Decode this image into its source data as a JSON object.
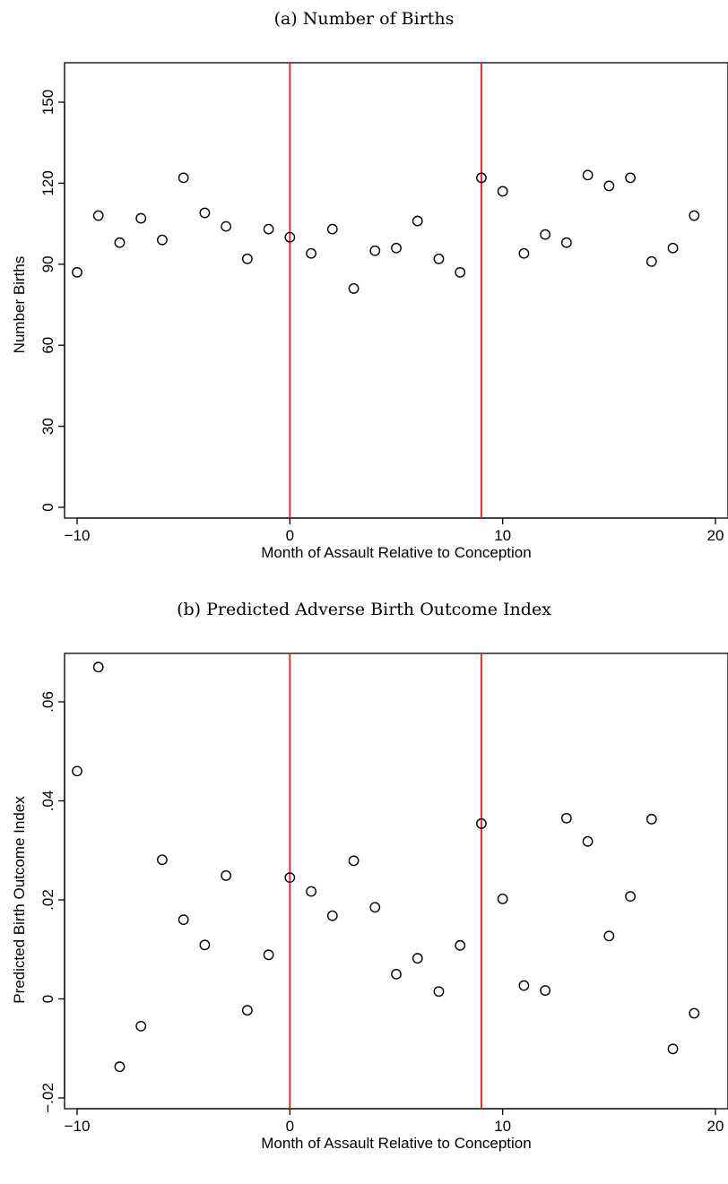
{
  "chart_data": [
    {
      "type": "scatter",
      "title": "(a) Number of Births",
      "xlabel": "Month of Assault Relative to Conception",
      "ylabel": "Number Births",
      "xlim": [
        -10,
        20
      ],
      "ylim": [
        0,
        150
      ],
      "xticks": [
        -10,
        0,
        10,
        20
      ],
      "yticks": [
        0,
        30,
        60,
        90,
        120,
        150
      ],
      "xtick_labels": [
        "−10",
        "0",
        "10",
        "20"
      ],
      "ytick_labels": [
        "0",
        "30",
        "60",
        "90",
        "120",
        "150"
      ],
      "vlines": [
        0,
        9
      ],
      "vline_color": "#e41a1c",
      "marker": "hollow-circle",
      "grid": false,
      "x": [
        -10,
        -9,
        -8,
        -7,
        -6,
        -5,
        -4,
        -3,
        -2,
        -1,
        0,
        1,
        2,
        3,
        4,
        5,
        6,
        7,
        8,
        9,
        10,
        11,
        12,
        13,
        14,
        15,
        16,
        17,
        18,
        19
      ],
      "y": [
        87,
        108,
        98,
        107,
        99,
        122,
        109,
        104,
        92,
        103,
        100,
        94,
        103,
        81,
        95,
        96,
        106,
        92,
        87,
        122,
        117,
        94,
        101,
        98,
        123,
        119,
        122,
        91,
        96,
        108
      ]
    },
    {
      "type": "scatter",
      "title": "(b) Predicted Adverse Birth Outcome Index",
      "xlabel": "Month of Assault Relative to Conception",
      "ylabel": "Predicted Birth Outcome Index",
      "xlim": [
        -10,
        20
      ],
      "ylim": [
        -0.02,
        0.06
      ],
      "xticks": [
        -10,
        0,
        10,
        20
      ],
      "yticks": [
        -0.02,
        0,
        0.02,
        0.04,
        0.06
      ],
      "xtick_labels": [
        "−10",
        "0",
        "10",
        "20"
      ],
      "ytick_labels": [
        "−.02",
        "0",
        ".02",
        ".04",
        ".06"
      ],
      "vlines": [
        0,
        9
      ],
      "vline_color": "#e41a1c",
      "marker": "hollow-circle",
      "grid": false,
      "x": [
        -10,
        -9,
        -8,
        -7,
        -6,
        -5,
        -4,
        -3,
        -2,
        -1,
        0,
        1,
        2,
        3,
        4,
        5,
        6,
        7,
        8,
        9,
        10,
        11,
        12,
        13,
        14,
        15,
        16,
        17,
        18,
        19
      ],
      "y": [
        0.046,
        0.067,
        -0.0137,
        -0.0055,
        0.0281,
        0.016,
        0.0109,
        0.0249,
        -0.0023,
        0.0089,
        0.0245,
        0.0217,
        0.0168,
        0.0279,
        0.0185,
        0.005,
        0.0082,
        0.0015,
        0.0108,
        0.0354,
        0.0202,
        0.0027,
        0.0017,
        0.0365,
        0.0318,
        0.0127,
        0.0207,
        0.0363,
        -0.0101,
        -0.0029
      ]
    }
  ]
}
